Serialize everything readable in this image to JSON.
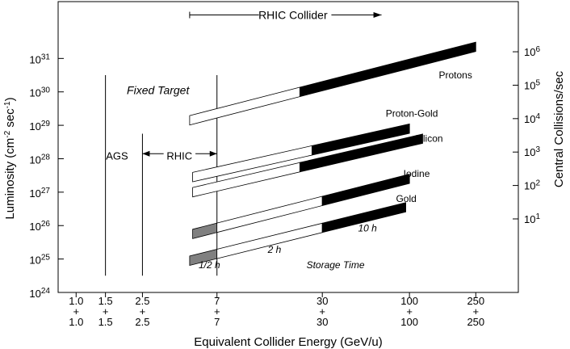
{
  "chart_data": {
    "type": "line",
    "title": "",
    "xlabel": "Equivalent Collider Energy (GeV/u)",
    "ylabel_left": {
      "main": "Luminosity (cm",
      "sup1": "-2",
      "mid": " sec",
      "sup2": "-1",
      "end": ")"
    },
    "ylabel_right": "Central Collisions/sec",
    "x_scale": "log",
    "y_scale": "log",
    "x_ticks": [
      {
        "value": 1.0,
        "top": "1.0",
        "mid": "+",
        "bottom": "1.0"
      },
      {
        "value": 1.5,
        "top": "1.5",
        "mid": "+",
        "bottom": "1.5"
      },
      {
        "value": 2.5,
        "top": "2.5",
        "mid": "+",
        "bottom": "2.5"
      },
      {
        "value": 7,
        "top": "7",
        "mid": "+",
        "bottom": "7"
      },
      {
        "value": 30,
        "top": "30",
        "mid": "+",
        "bottom": "30"
      },
      {
        "value": 100,
        "top": "100",
        "mid": "+",
        "bottom": "100"
      },
      {
        "value": 250,
        "top": "250",
        "mid": "+",
        "bottom": "250"
      }
    ],
    "y_ticks_left": [
      {
        "exp": 24,
        "base": "10",
        "sup": "24"
      },
      {
        "exp": 25,
        "base": "10",
        "sup": "25"
      },
      {
        "exp": 26,
        "base": "10",
        "sup": "26"
      },
      {
        "exp": 27,
        "base": "10",
        "sup": "27"
      },
      {
        "exp": 28,
        "base": "10",
        "sup": "28"
      },
      {
        "exp": 29,
        "base": "10",
        "sup": "29"
      },
      {
        "exp": 30,
        "base": "10",
        "sup": "30"
      },
      {
        "exp": 31,
        "base": "10",
        "sup": "31"
      }
    ],
    "y_ticks_right": [
      {
        "exp": 1,
        "lum_exp": 26.2,
        "base": "10",
        "sup": "1"
      },
      {
        "exp": 2,
        "lum_exp": 27.2,
        "base": "10",
        "sup": "2"
      },
      {
        "exp": 3,
        "lum_exp": 28.2,
        "base": "10",
        "sup": "3"
      },
      {
        "exp": 4,
        "lum_exp": 29.2,
        "base": "10",
        "sup": "4"
      },
      {
        "exp": 5,
        "lum_exp": 30.2,
        "base": "10",
        "sup": "5"
      },
      {
        "exp": 6,
        "lum_exp": 31.2,
        "base": "10",
        "sup": "6"
      }
    ],
    "xlim": [
      0.78,
      450
    ],
    "ylim_exp": [
      24,
      32.7
    ],
    "vertical_lines": [
      {
        "x": 1.5,
        "exp_bottom": 24.5,
        "exp_top": 30.5
      },
      {
        "x": 2.5,
        "exp_bottom": 24.5,
        "exp_top": 28.75
      },
      {
        "x": 7,
        "exp_bottom": 24.5,
        "exp_top": 30.5
      }
    ],
    "series": [
      {
        "name": "Protons",
        "x_start": 4.8,
        "x_gray_end": 4.8,
        "x_white_end": 22,
        "x_end": 250,
        "exp_start": 29.15,
        "exp_end": 31.35,
        "thickness": 0.28,
        "label_x": 150,
        "label_exp": 30.5
      },
      {
        "name": "Proton-Gold",
        "x_start": 5.0,
        "x_gray_end": 5.0,
        "x_white_end": 26,
        "x_end": 100,
        "exp_start": 27.45,
        "exp_end": 28.9,
        "thickness": 0.28,
        "label_x": 72,
        "label_exp": 29.35
      },
      {
        "name": "Silicon",
        "x_start": 5.0,
        "x_gray_end": 5.0,
        "x_white_end": 22,
        "x_end": 120,
        "exp_start": 27.0,
        "exp_end": 28.6,
        "thickness": 0.28,
        "label_x": 107,
        "label_exp": 28.6
      },
      {
        "name": "Iodine",
        "x_start": 5.0,
        "x_gray_end": 7,
        "x_white_end": 30,
        "x_end": 100,
        "exp_start": 25.75,
        "exp_end": 27.4,
        "thickness": 0.28,
        "label_x": 92,
        "label_exp": 27.55
      },
      {
        "name": "Gold",
        "x_start": 4.8,
        "x_gray_end": 7,
        "x_white_end": 30,
        "x_end": 95,
        "exp_start": 24.95,
        "exp_end": 26.55,
        "thickness": 0.28,
        "label_x": 83,
        "label_exp": 26.8
      }
    ],
    "annotations": [
      {
        "text": "Fixed Target",
        "x": 3.1,
        "exp": 30.05,
        "style": "italic",
        "size": 14
      },
      {
        "text": "AGS",
        "x": 1.76,
        "exp": 28.1,
        "style": "normal",
        "size": 13
      },
      {
        "text": "RHIC",
        "x": 4.17,
        "exp": 28.1,
        "style": "normal",
        "size": 13
      },
      {
        "text": "RHIC Collider",
        "x": 20,
        "exp": 32.3,
        "style": "normal",
        "size": 14
      },
      {
        "text": "Storage Time",
        "x": 36,
        "exp": 24.85,
        "style": "italic",
        "size": 12
      },
      {
        "text": "10 h",
        "x": 56,
        "exp": 25.95,
        "style": "italic",
        "size": 12
      },
      {
        "text": "2 h",
        "x": 15.5,
        "exp": 25.3,
        "style": "italic",
        "size": 12
      },
      {
        "text": "1/2 h",
        "x": 6.3,
        "exp": 24.85,
        "style": "italic",
        "size": 12
      }
    ],
    "arrows": [
      {
        "name": "rhic-collider-arrow",
        "x1": 4.8,
        "x2": 68,
        "exp": 32.3
      },
      {
        "name": "rhic-range-arrow",
        "x1": 2.5,
        "x2": 7,
        "exp": 28.15
      }
    ],
    "colors": {
      "high": "#000000",
      "low": "#ffffff",
      "initial": "#808080",
      "axis": "#000000"
    }
  }
}
